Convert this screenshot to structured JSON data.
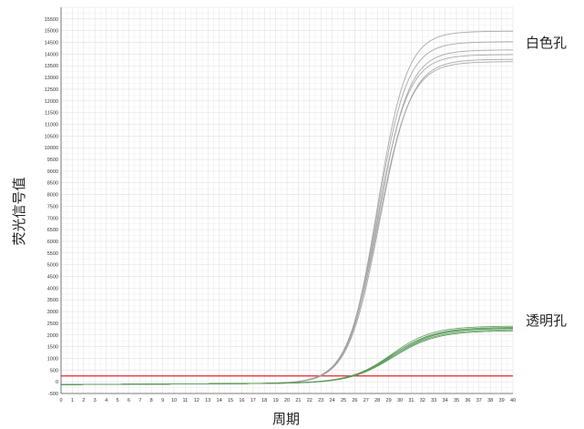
{
  "chart_data": {
    "type": "line",
    "title": "",
    "xlabel": "周期",
    "ylabel": "荧光信号值",
    "xlim": [
      0,
      40
    ],
    "ylim": [
      -500,
      16000
    ],
    "x_ticks": [
      0,
      1,
      2,
      3,
      4,
      5,
      6,
      7,
      8,
      9,
      10,
      11,
      12,
      13,
      14,
      15,
      16,
      17,
      18,
      19,
      20,
      21,
      22,
      23,
      24,
      25,
      26,
      27,
      28,
      29,
      30,
      31,
      32,
      33,
      34,
      35,
      36,
      37,
      38,
      39,
      40
    ],
    "y_ticks": [
      -500,
      0,
      500,
      1000,
      1500,
      2000,
      2500,
      3000,
      3500,
      4000,
      4500,
      5000,
      5500,
      6000,
      6500,
      7000,
      7500,
      8000,
      8500,
      9000,
      9500,
      10000,
      10500,
      11000,
      11500,
      12000,
      12500,
      13000,
      13500,
      14000,
      14500,
      15000,
      15500
    ],
    "grid": true,
    "annotations": [
      {
        "text": "白色孔",
        "near_series": "white_wells"
      },
      {
        "text": "透明孔",
        "near_series": "clear_wells"
      }
    ],
    "threshold": {
      "value": 250,
      "color": "#e0262b"
    },
    "series_groups": [
      {
        "id": "white_wells",
        "color": "#a0a0a0",
        "curves": [
          {
            "plateau": 15000,
            "midpoint": 28.0,
            "slope": 1.3
          },
          {
            "plateau": 14550,
            "midpoint": 28.0,
            "slope": 1.32
          },
          {
            "plateau": 14200,
            "midpoint": 28.1,
            "slope": 1.34
          },
          {
            "plateau": 14000,
            "midpoint": 28.0,
            "slope": 1.36
          },
          {
            "plateau": 13800,
            "midpoint": 28.2,
            "slope": 1.38
          },
          {
            "plateau": 13700,
            "midpoint": 28.1,
            "slope": 1.4
          }
        ]
      },
      {
        "id": "clear_wells",
        "color": "#5a9a5a",
        "curves": [
          {
            "plateau": 2400,
            "midpoint": 29.2,
            "slope": 1.8
          },
          {
            "plateau": 2350,
            "midpoint": 29.3,
            "slope": 1.85
          },
          {
            "plateau": 2320,
            "midpoint": 29.2,
            "slope": 1.9
          },
          {
            "plateau": 2300,
            "midpoint": 29.4,
            "slope": 1.85
          },
          {
            "plateau": 2250,
            "midpoint": 29.3,
            "slope": 1.95
          },
          {
            "plateau": 2200,
            "midpoint": 29.4,
            "slope": 1.9
          }
        ]
      }
    ],
    "baseline": {
      "start": -120,
      "end": -20
    }
  }
}
